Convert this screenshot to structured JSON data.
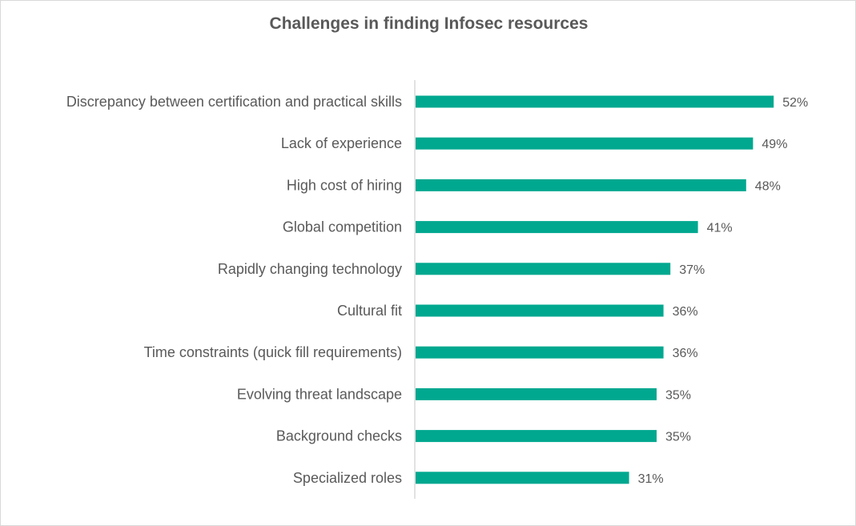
{
  "chart_data": {
    "type": "bar",
    "orientation": "horizontal",
    "title": "Challenges in finding Infosec resources",
    "categories": [
      "Discrepancy between certification and practical skills",
      "Lack of experience",
      "High cost of hiring",
      "Global competition",
      "Rapidly changing technology",
      "Cultural fit",
      "Time constraints (quick fill requirements)",
      "Evolving threat landscape",
      "Background checks",
      "Specialized roles"
    ],
    "values": [
      52,
      49,
      48,
      41,
      37,
      36,
      36,
      35,
      35,
      31
    ],
    "value_labels": [
      "52%",
      "49%",
      "48%",
      "41%",
      "37%",
      "36%",
      "36%",
      "35%",
      "35%",
      "31%"
    ],
    "xlim": [
      0,
      100
    ],
    "grid": false,
    "legend": "none",
    "bar_color": "#00a88f",
    "axis_color": "#d9d9d9",
    "text_color": "#595959"
  }
}
